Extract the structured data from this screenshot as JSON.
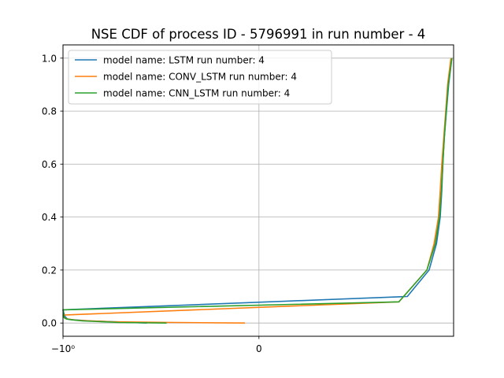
{
  "chart_data": {
    "type": "line",
    "title": "NSE CDF of process ID - 5796991 in run number - 4",
    "xlabel": "",
    "ylabel": "",
    "x_scale": "symlog",
    "xlim": [
      -1.0000007,
      0.9
    ],
    "ylim": [
      -0.05,
      1.05
    ],
    "x_ticks": [
      {
        "value": -1.0,
        "label": "−10⁰"
      },
      {
        "value": 0,
        "label": "0"
      }
    ],
    "y_ticks": [
      {
        "value": 0.0,
        "label": "0.0"
      },
      {
        "value": 0.2,
        "label": "0.2"
      },
      {
        "value": 0.4,
        "label": "0.4"
      },
      {
        "value": 0.6,
        "label": "0.6"
      },
      {
        "value": 0.8,
        "label": "0.8"
      },
      {
        "value": 1.0,
        "label": "1.0"
      }
    ],
    "grid": true,
    "legend_position": "upper-left",
    "series": [
      {
        "name": "model name: LSTM run number: 4",
        "color": "#1f77b4",
        "points": [
          [
            -0.001,
            0.0
          ],
          [
            -0.1,
            0.008
          ],
          [
            -0.45,
            0.012
          ],
          [
            -0.7,
            0.015
          ],
          [
            -0.85,
            0.025
          ],
          [
            -0.95,
            0.04
          ],
          [
            -0.995,
            0.05
          ],
          [
            0.02,
            0.1
          ],
          [
            0.12,
            0.2
          ],
          [
            0.22,
            0.3
          ],
          [
            0.3,
            0.4
          ],
          [
            0.34,
            0.5
          ],
          [
            0.37,
            0.6
          ],
          [
            0.42,
            0.7
          ],
          [
            0.5,
            0.8
          ],
          [
            0.6,
            0.9
          ],
          [
            0.78,
            1.0
          ]
        ]
      },
      {
        "name": "model name: CONV_LSTM run number: 4",
        "color": "#ff7f0e",
        "points": [
          [
            -5e-07,
            0.0
          ],
          [
            -0.0001,
            0.002
          ],
          [
            -0.02,
            0.005
          ],
          [
            -0.3,
            0.01
          ],
          [
            -0.7,
            0.015
          ],
          [
            -0.9,
            0.02
          ],
          [
            -0.995,
            0.03
          ],
          [
            0.01,
            0.08
          ],
          [
            0.1,
            0.2
          ],
          [
            0.18,
            0.3
          ],
          [
            0.26,
            0.4
          ],
          [
            0.3,
            0.5
          ],
          [
            0.34,
            0.6
          ],
          [
            0.4,
            0.7
          ],
          [
            0.47,
            0.8
          ],
          [
            0.55,
            0.9
          ],
          [
            0.72,
            1.0
          ]
        ]
      },
      {
        "name": "model name: CNN_LSTM run number: 4",
        "color": "#2ca02c",
        "points": [
          [
            -0.0002,
            0.0
          ],
          [
            -0.01,
            0.002
          ],
          [
            -0.2,
            0.008
          ],
          [
            -0.5,
            0.012
          ],
          [
            -0.75,
            0.015
          ],
          [
            -0.9,
            0.02
          ],
          [
            -0.97,
            0.04
          ],
          [
            -0.999,
            0.05
          ],
          [
            0.01,
            0.08
          ],
          [
            0.1,
            0.2
          ],
          [
            0.2,
            0.3
          ],
          [
            0.28,
            0.4
          ],
          [
            0.33,
            0.5
          ],
          [
            0.37,
            0.6
          ],
          [
            0.42,
            0.7
          ],
          [
            0.49,
            0.8
          ],
          [
            0.58,
            0.9
          ],
          [
            0.78,
            1.0
          ]
        ]
      }
    ]
  }
}
